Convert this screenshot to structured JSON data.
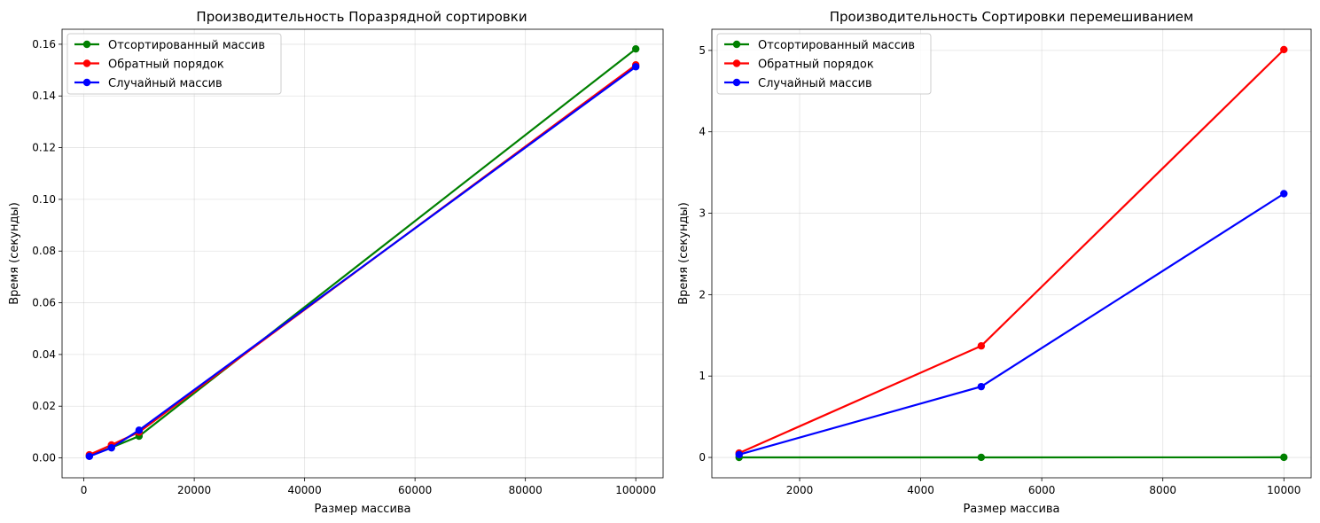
{
  "chart_data": [
    {
      "type": "line",
      "title": "Производительность Поразрядной сортировки",
      "xlabel": "Размер массива",
      "ylabel": "Время (секунды)",
      "xlim": [
        -3950,
        104950
      ],
      "ylim": [
        -0.0077,
        0.1658
      ],
      "xticks": [
        0,
        20000,
        40000,
        60000,
        80000,
        100000
      ],
      "xtick_labels": [
        "0",
        "20000",
        "40000",
        "60000",
        "80000",
        "100000"
      ],
      "yticks": [
        0.0,
        0.02,
        0.04,
        0.06,
        0.08,
        0.1,
        0.12,
        0.14,
        0.16
      ],
      "ytick_labels": [
        "0.00",
        "0.02",
        "0.04",
        "0.06",
        "0.08",
        "0.10",
        "0.12",
        "0.14",
        "0.16"
      ],
      "grid": true,
      "legend_position": "upper-left",
      "x": [
        1000,
        5000,
        10000,
        100000
      ],
      "series": [
        {
          "name": "Отсортированный массив",
          "color": "#008000",
          "values": [
            0.0007,
            0.004,
            0.0084,
            0.1582
          ]
        },
        {
          "name": "Обратный порядок",
          "color": "#ff0000",
          "values": [
            0.0012,
            0.005,
            0.01,
            0.152
          ]
        },
        {
          "name": "Случайный массив",
          "color": "#0000ff",
          "values": [
            0.0006,
            0.0039,
            0.0107,
            0.1513
          ]
        }
      ]
    },
    {
      "type": "line",
      "title": "Производительность Сортировки перемешиванием",
      "xlabel": "Размер массива",
      "ylabel": "Время (секунды)",
      "xlim": [
        550,
        10450
      ],
      "ylim": [
        -0.25,
        5.26
      ],
      "xticks": [
        2000,
        4000,
        6000,
        8000,
        10000
      ],
      "xtick_labels": [
        "2000",
        "4000",
        "6000",
        "8000",
        "10000"
      ],
      "yticks": [
        0,
        1,
        2,
        3,
        4,
        5
      ],
      "ytick_labels": [
        "0",
        "1",
        "2",
        "3",
        "4",
        "5"
      ],
      "grid": true,
      "legend_position": "upper-left",
      "x": [
        1000,
        5000,
        10000
      ],
      "series": [
        {
          "name": "Отсортированный массив",
          "color": "#008000",
          "values": [
            0.0003,
            0.0009,
            0.0019
          ]
        },
        {
          "name": "Обратный порядок",
          "color": "#ff0000",
          "values": [
            0.054,
            1.37,
            5.01
          ]
        },
        {
          "name": "Случайный массив",
          "color": "#0000ff",
          "values": [
            0.035,
            0.87,
            3.24
          ]
        }
      ]
    }
  ]
}
